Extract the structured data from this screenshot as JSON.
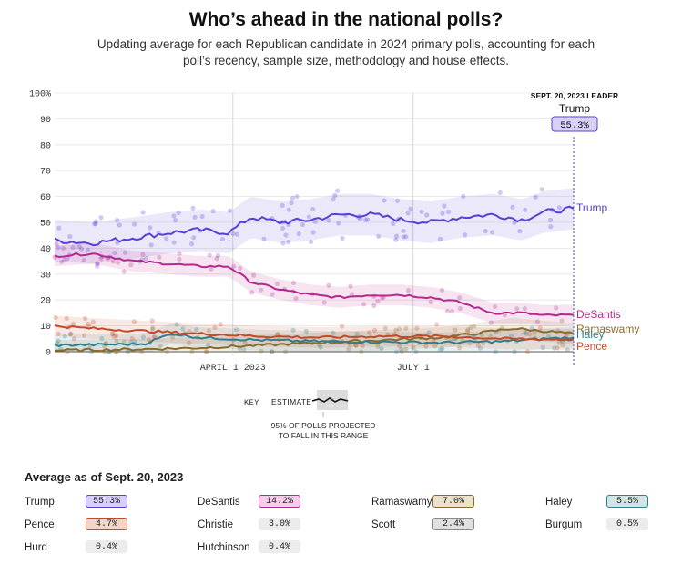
{
  "header": {
    "title": "Who’s ahead in the national polls?",
    "subtitle": "Updating average for each Republican candidate in 2024 primary polls, accounting for each poll’s recency, sample size, methodology and house effects."
  },
  "leader_box": {
    "heading": "SEPT. 20, 2023 LEADER",
    "name": "Trump",
    "value": "55.3%"
  },
  "key": {
    "label": "KEY",
    "estimate": "ESTIMATE",
    "range_note_1": "95% OF POLLS PROJECTED",
    "range_note_2": "TO FALL IN THIS RANGE"
  },
  "chart_data": {
    "type": "line",
    "y_tick_labels": [
      "100%",
      "90",
      "80",
      "70",
      "60",
      "50",
      "40",
      "30",
      "20",
      "10",
      "0"
    ],
    "y_ticks": [
      100,
      90,
      80,
      70,
      60,
      50,
      40,
      30,
      20,
      10,
      0
    ],
    "ylim": [
      0,
      100
    ],
    "x_tick_labels": [
      "APRIL 1 2023",
      "JULY 1"
    ],
    "x_ticks": [
      "2023-04-01",
      "2023-07-01"
    ],
    "xlim": [
      "2023-01-01",
      "2023-09-20"
    ],
    "grid": true,
    "series": [
      {
        "name": "Trump",
        "color": "#5a3fd6",
        "x": [
          "2023-01-01",
          "2023-01-20",
          "2023-02-10",
          "2023-02-28",
          "2023-03-15",
          "2023-03-30",
          "2023-04-10",
          "2023-04-25",
          "2023-05-10",
          "2023-05-25",
          "2023-06-10",
          "2023-06-25",
          "2023-07-10",
          "2023-07-25",
          "2023-08-10",
          "2023-08-25",
          "2023-09-05",
          "2023-09-20"
        ],
        "values": [
          43,
          42,
          44,
          46,
          47,
          46,
          52,
          50,
          51,
          53,
          53,
          51,
          50,
          52,
          53,
          51,
          54,
          55.3
        ]
      },
      {
        "name": "DeSantis",
        "color": "#b5288f",
        "x": [
          "2023-01-01",
          "2023-01-20",
          "2023-02-10",
          "2023-02-28",
          "2023-03-15",
          "2023-03-30",
          "2023-04-10",
          "2023-04-25",
          "2023-05-10",
          "2023-05-25",
          "2023-06-10",
          "2023-06-25",
          "2023-07-10",
          "2023-07-25",
          "2023-08-10",
          "2023-08-25",
          "2023-09-05",
          "2023-09-20"
        ],
        "values": [
          37,
          38,
          35,
          34,
          33,
          33,
          27,
          24,
          22,
          21,
          22,
          22,
          21,
          19,
          15,
          15,
          14,
          14.2
        ]
      },
      {
        "name": "Ramaswamy",
        "color": "#8a6a2a",
        "x": [
          "2023-01-01",
          "2023-02-15",
          "2023-03-15",
          "2023-04-15",
          "2023-05-15",
          "2023-06-15",
          "2023-07-15",
          "2023-08-01",
          "2023-08-20",
          "2023-09-05",
          "2023-09-20"
        ],
        "values": [
          0.5,
          1,
          1.5,
          2.5,
          3.5,
          4.5,
          5.5,
          7,
          9,
          8,
          7.0
        ]
      },
      {
        "name": "Haley",
        "color": "#2f7f8a",
        "x": [
          "2023-01-01",
          "2023-02-15",
          "2023-03-01",
          "2023-03-15",
          "2023-04-15",
          "2023-05-15",
          "2023-06-15",
          "2023-07-15",
          "2023-08-15",
          "2023-09-05",
          "2023-09-20"
        ],
        "values": [
          2.5,
          3,
          7,
          5.5,
          4.5,
          4,
          3.8,
          3.5,
          4,
          5,
          5.5
        ]
      },
      {
        "name": "Pence",
        "color": "#c44a27",
        "x": [
          "2023-01-01",
          "2023-01-20",
          "2023-02-15",
          "2023-03-15",
          "2023-04-15",
          "2023-05-15",
          "2023-06-15",
          "2023-07-15",
          "2023-08-15",
          "2023-09-05",
          "2023-09-20"
        ],
        "values": [
          10,
          9,
          8,
          7,
          6,
          5.5,
          6,
          6,
          5,
          4.8,
          4.7
        ]
      }
    ]
  },
  "summary": {
    "title": "Average as of Sept. 20, 2023",
    "candidates": [
      {
        "name": "Trump",
        "value": "55.3%",
        "bg": "#d8d0fa",
        "border": "#5a3fd6"
      },
      {
        "name": "DeSantis",
        "value": "14.2%",
        "bg": "#f6cdea",
        "border": "#b5288f"
      },
      {
        "name": "Ramaswamy",
        "value": "7.0%",
        "bg": "#ece1cb",
        "border": "#8a6a2a"
      },
      {
        "name": "Haley",
        "value": "5.5%",
        "bg": "#d2e5e6",
        "border": "#2f7f8a"
      },
      {
        "name": "Pence",
        "value": "4.7%",
        "bg": "#f3d4c8",
        "border": "#c44a27"
      },
      {
        "name": "Christie",
        "value": "3.0%",
        "bg": "#ececec",
        "border": "#ececec"
      },
      {
        "name": "Scott",
        "value": "2.4%",
        "bg": "#e0e0e0",
        "border": "#8a8a8a"
      },
      {
        "name": "Burgum",
        "value": "0.5%",
        "bg": "#ececec",
        "border": "#ececec"
      },
      {
        "name": "Hurd",
        "value": "0.4%",
        "bg": "#ececec",
        "border": "#ececec"
      },
      {
        "name": "Hutchinson",
        "value": "0.4%",
        "bg": "#ececec",
        "border": "#ececec"
      }
    ]
  }
}
